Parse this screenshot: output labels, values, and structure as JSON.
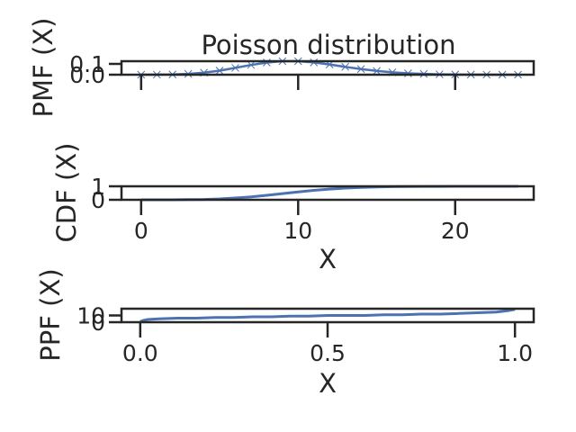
{
  "chart_data": [
    {
      "type": "line",
      "title": "Poisson distribution",
      "ylabel": "PMF (X)",
      "xlabel": "",
      "xlim": [
        -1.25,
        25.0
      ],
      "ylim": [
        0.0,
        0.125
      ],
      "xticks": [
        0,
        10,
        20
      ],
      "show_xtick_labels": false,
      "yticks": [
        {
          "value": 0.0,
          "label": "0.0"
        },
        {
          "value": 0.1,
          "label": "0.1"
        }
      ],
      "series": [
        {
          "style": "line-with-x-markers",
          "x": [
            0,
            1,
            2,
            3,
            4,
            5,
            6,
            7,
            8,
            9,
            10,
            11,
            12,
            13,
            14,
            15,
            16,
            17,
            18,
            19,
            20,
            21,
            22,
            23,
            24
          ],
          "y": [
            0.0,
            0.0005,
            0.0023,
            0.0076,
            0.0189,
            0.0378,
            0.0631,
            0.0901,
            0.1126,
            0.1251,
            0.1251,
            0.1137,
            0.0948,
            0.0729,
            0.0521,
            0.0347,
            0.0217,
            0.0128,
            0.0071,
            0.0037,
            0.0019,
            0.0009,
            0.0004,
            0.0002,
            0.0001
          ]
        }
      ]
    },
    {
      "type": "line",
      "title": "",
      "ylabel": "CDF (X)",
      "xlabel": "X",
      "xlim": [
        -1.25,
        25.0
      ],
      "ylim": [
        0.0,
        1.0
      ],
      "xticks": [
        {
          "value": 0,
          "label": "0"
        },
        {
          "value": 10,
          "label": "10"
        },
        {
          "value": 20,
          "label": "20"
        }
      ],
      "yticks": [
        {
          "value": 0,
          "label": "0"
        },
        {
          "value": 1,
          "label": "1"
        }
      ],
      "series": [
        {
          "style": "line",
          "x": [
            0,
            1,
            2,
            3,
            4,
            5,
            6,
            7,
            8,
            9,
            10,
            11,
            12,
            13,
            14,
            15,
            16,
            17,
            18,
            19,
            20,
            21,
            22,
            23,
            24
          ],
          "y": [
            0.0,
            0.0005,
            0.0028,
            0.0103,
            0.0293,
            0.0671,
            0.1301,
            0.2202,
            0.3328,
            0.4579,
            0.583,
            0.6968,
            0.7916,
            0.8645,
            0.9165,
            0.9513,
            0.973,
            0.9857,
            0.9928,
            0.9965,
            0.9984,
            0.9993,
            0.9997,
            0.9999,
            1.0
          ]
        }
      ]
    },
    {
      "type": "line",
      "title": "",
      "ylabel": "PPF (X)",
      "xlabel": "X",
      "xlim": [
        -0.05,
        1.05
      ],
      "ylim": [
        0,
        20
      ],
      "xticks": [
        {
          "value": 0.0,
          "label": "0.0"
        },
        {
          "value": 0.5,
          "label": "0.5"
        },
        {
          "value": 1.0,
          "label": "1.0"
        }
      ],
      "yticks": [
        {
          "value": 0,
          "label": "0"
        },
        {
          "value": 10,
          "label": "10"
        }
      ],
      "series": [
        {
          "style": "line",
          "x": [
            0.0,
            0.01,
            0.02,
            0.05,
            0.1,
            0.15,
            0.2,
            0.25,
            0.3,
            0.35,
            0.4,
            0.45,
            0.5,
            0.55,
            0.6,
            0.65,
            0.7,
            0.75,
            0.8,
            0.85,
            0.9,
            0.95,
            0.98,
            1.0
          ],
          "y": [
            1,
            3,
            4,
            5,
            6,
            6,
            7,
            7,
            8,
            8,
            9,
            9,
            10,
            10,
            10,
            11,
            11,
            12,
            12,
            13,
            14,
            15,
            17,
            19
          ]
        }
      ]
    }
  ]
}
